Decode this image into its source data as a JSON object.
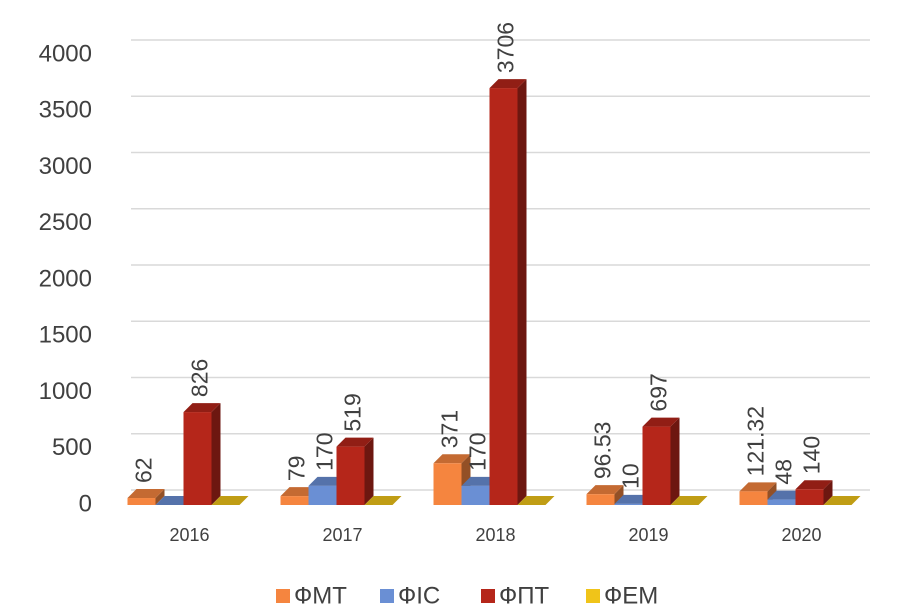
{
  "chart_data": {
    "type": "bar3d",
    "categories": [
      "2016",
      "2017",
      "2018",
      "2019",
      "2020"
    ],
    "series": [
      {
        "name": "ФМТ",
        "color": "#f5853f",
        "values": [
          62,
          79,
          371,
          96.53,
          121.32
        ],
        "value_labels": [
          "62",
          "79",
          "371",
          "96.53",
          "121.32"
        ]
      },
      {
        "name": "ФІС",
        "color": "#6a8fd4",
        "values": [
          0,
          170,
          170,
          10,
          48
        ],
        "value_labels": [
          null,
          "170",
          "170",
          "10",
          "48"
        ]
      },
      {
        "name": "ФПТ",
        "color": "#b5261a",
        "values": [
          826,
          519,
          3706,
          697,
          140
        ],
        "value_labels": [
          "826",
          "519",
          "3706",
          "697",
          "140"
        ]
      },
      {
        "name": "ФЕМ",
        "color": "#f0c419",
        "values": [
          0,
          0,
          0,
          0,
          0
        ],
        "value_labels": [
          null,
          null,
          null,
          null,
          null
        ]
      }
    ],
    "ylim": [
      0,
      4000
    ],
    "yticks": [
      0,
      500,
      1000,
      1500,
      2000,
      2500,
      3000,
      3500,
      4000
    ],
    "grid": true,
    "legend": "bottom"
  }
}
